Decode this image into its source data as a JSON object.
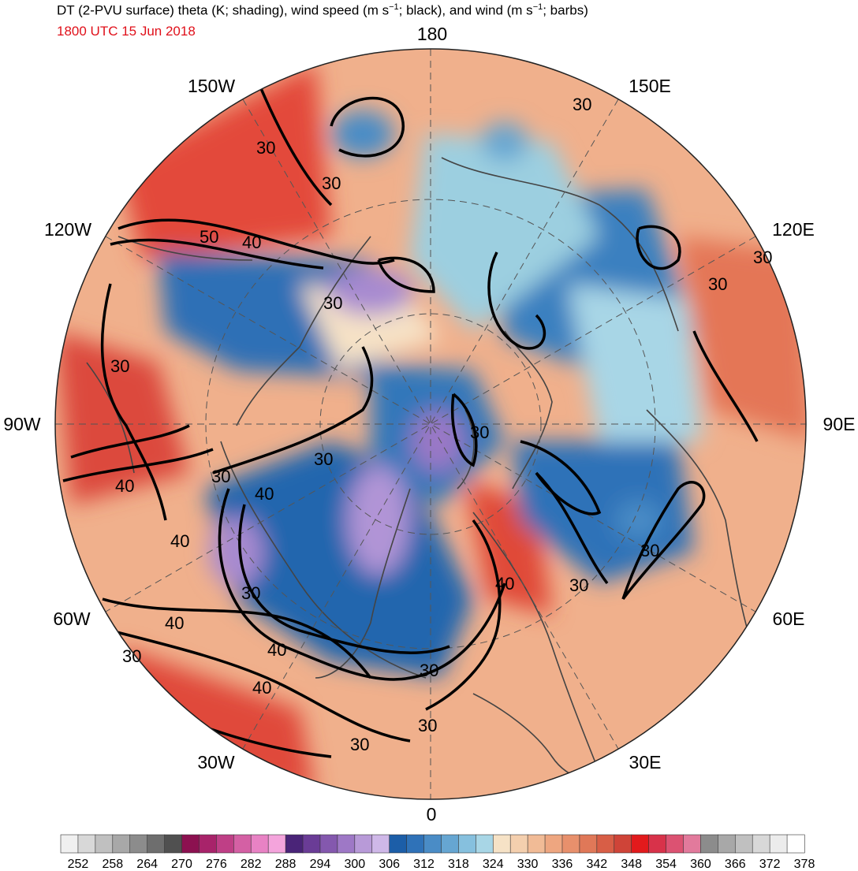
{
  "title": {
    "part1": "DT (2-PVU surface) theta (K; shading), wind speed (m s",
    "sup1": "−1",
    "part2": "; black), and wind (m s",
    "sup2": "−1",
    "part3": "; barbs)"
  },
  "valid_time": "1800 UTC 15 Jun 2018",
  "longitude_labels": [
    "180",
    "150E",
    "120E",
    "90E",
    "60E",
    "30E",
    "0",
    "30W",
    "60W",
    "90W",
    "120W",
    "150W"
  ],
  "contour_labels": [
    "30",
    "40",
    "50"
  ],
  "colorbar": {
    "tick_labels": [
      "252",
      "258",
      "264",
      "270",
      "276",
      "282",
      "288",
      "294",
      "300",
      "306",
      "312",
      "318",
      "324",
      "330",
      "336",
      "342",
      "348",
      "354",
      "360",
      "366",
      "372",
      "378"
    ],
    "colors": [
      "#f0f0f0",
      "#d8d8d8",
      "#c0c0c0",
      "#a8a8a8",
      "#8c8c8c",
      "#6e6e6e",
      "#505050",
      "#8c1150",
      "#a8236a",
      "#bf3f86",
      "#d460a4",
      "#e882c4",
      "#f4a4dc",
      "#4a2478",
      "#6a3c96",
      "#8458ae",
      "#9e78c6",
      "#b89ad8",
      "#cfb8e8",
      "#1c5ea8",
      "#2f72b8",
      "#4a8cc6",
      "#66a6d2",
      "#86c0de",
      "#a8d6e6",
      "#f6e2c6",
      "#f4cfae",
      "#f1bb96",
      "#ee a680",
      "#e8906c",
      "#e07858",
      "#d85e46",
      "#cf4438",
      "#e21a1c",
      "#d8324a",
      "#dc5272",
      "#e27a9c",
      "#8c8c8c",
      "#a8a8a8",
      "#c0c0c0",
      "#d8d8d8",
      "#ececec",
      "#ffffff"
    ]
  },
  "map": {
    "projection": "north polar stereographic",
    "field_colors": {
      "low_theta": "#1f62aa",
      "mid_low": "#4a8cc6",
      "light_blue": "#9ccfe0",
      "purple": "#a78ad0",
      "cream": "#f6e2c6",
      "salmon": "#eea07c",
      "red": "#e24a36",
      "magenta": "#d4326c"
    }
  }
}
